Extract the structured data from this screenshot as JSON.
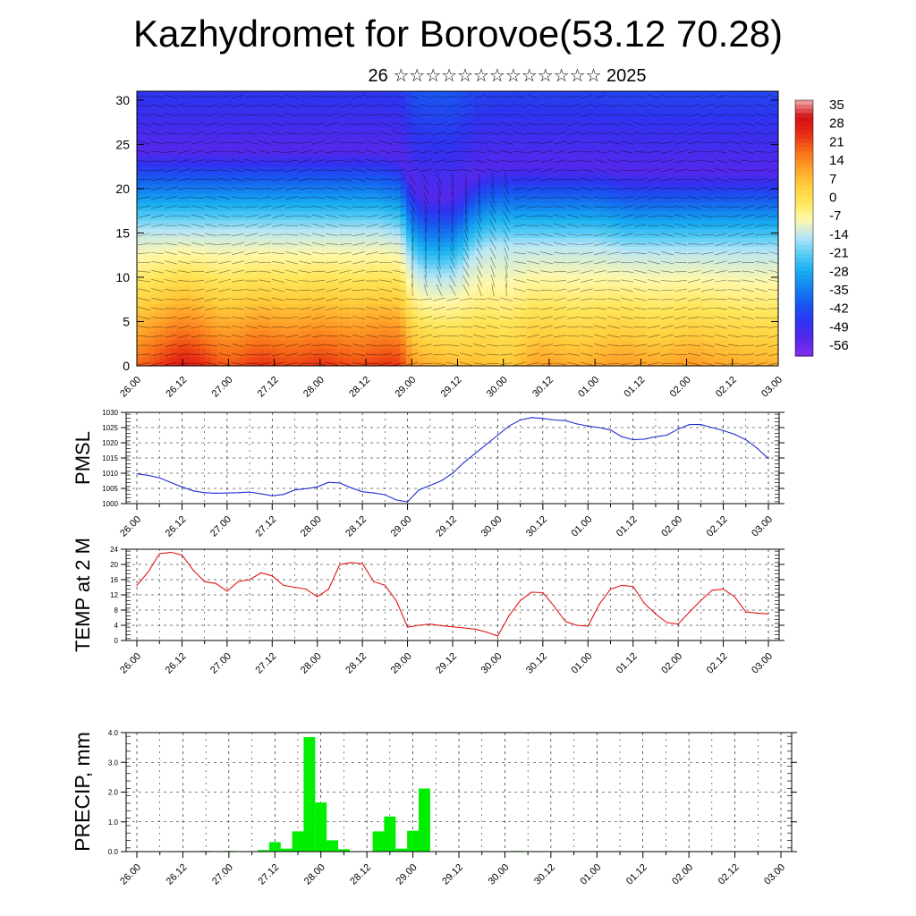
{
  "title": "Kazhydromet for Borovoe(53.12 70.28)",
  "subtitle": "26 ☆☆☆☆☆☆☆☆☆☆☆☆☆ 2025",
  "colors": {
    "pmsl_line": "#1f2fd1",
    "temp_line": "#e31414",
    "precip_bar": "#00ee00",
    "axis": "#000000"
  },
  "chart_data": [
    {
      "type": "heatmap",
      "name": "cross-section",
      "x_ticks": [
        "26.00",
        "26.12",
        "27.00",
        "27.12",
        "28.00",
        "28.12",
        "29.00",
        "29.12",
        "30.00",
        "30.12",
        "01.00",
        "01.12",
        "02.00",
        "02.12",
        "03.00"
      ],
      "y_ticks": [
        "0",
        "5",
        "10",
        "15",
        "20",
        "25",
        "30"
      ],
      "ylim": [
        0,
        31
      ],
      "colorbar_labels": [
        "35",
        "28",
        "21",
        "14",
        "7",
        "0",
        "-7",
        "-14",
        "-21",
        "-28",
        "-35",
        "-42",
        "-49",
        "-56"
      ],
      "colorbar_range": [
        -63,
        42
      ],
      "grid_times": [
        0,
        3,
        6,
        9,
        12,
        15,
        18,
        21,
        24,
        27,
        30,
        33,
        36,
        39,
        42,
        45,
        48,
        51,
        54,
        57,
        60,
        63,
        66,
        69,
        72,
        75,
        78,
        81,
        84,
        87,
        90,
        93,
        96,
        99,
        102,
        105,
        108,
        111,
        114,
        117,
        120,
        123,
        126,
        129,
        132,
        135,
        138,
        141,
        144,
        147,
        150,
        153,
        156,
        159,
        162,
        165,
        168
      ],
      "surface_temp": [
        22,
        24,
        27,
        30,
        32,
        31,
        28,
        25,
        24,
        25,
        27,
        28,
        27,
        26,
        26,
        27,
        28,
        27,
        26,
        25,
        26,
        27,
        28,
        27,
        16,
        13,
        12,
        11,
        10,
        10,
        10,
        9,
        8,
        9,
        12,
        14,
        14,
        13,
        12,
        12,
        13,
        14,
        15,
        15,
        14,
        13,
        13,
        14,
        15,
        15,
        14,
        13,
        13,
        12,
        12,
        12,
        12
      ],
      "tropopause_km": [
        15.3,
        15.3,
        15.3,
        15.3,
        15.3,
        15.3,
        15.3,
        15.3,
        15.3,
        15.3,
        15.3,
        15.3,
        15.3,
        15.3,
        15.3,
        15.3,
        15.3,
        15.3,
        15.3,
        15.3,
        15.3,
        15.3,
        15.0,
        14.8,
        11.5,
        10.2,
        10.0,
        10.0,
        10.5,
        12.0,
        13.0,
        13.5,
        13.6,
        13.6,
        13.6,
        13.6,
        13.6,
        13.6,
        13.6,
        13.6,
        13.6,
        13.4,
        13.2,
        13.0,
        13.0,
        13.0,
        13.0,
        13.0,
        13.0,
        13.0,
        13.0,
        13.0,
        13.0,
        13.0,
        13.0,
        13.0,
        13.0
      ],
      "upper_min_temp": [
        -56,
        -56,
        -56,
        -56,
        -56,
        -56,
        -56,
        -56,
        -56,
        -56,
        -56,
        -56,
        -56,
        -56,
        -56,
        -56,
        -56,
        -56,
        -56,
        -56,
        -56,
        -56,
        -56,
        -56,
        -56,
        -56,
        -56,
        -56,
        -56,
        -56,
        -56,
        -56,
        -56,
        -56,
        -56,
        -56,
        -56,
        -56,
        -56,
        -56,
        -56,
        -56,
        -56,
        -56,
        -56,
        -56,
        -56,
        -56,
        -56,
        -56,
        -56,
        -56,
        -56,
        -56,
        -56,
        -56,
        -56
      ]
    },
    {
      "type": "line",
      "name": "PMSL",
      "ylabel": "PMSL",
      "x_ticks": [
        "26.00",
        "26.12",
        "27.00",
        "27.12",
        "28.00",
        "28.12",
        "29.00",
        "29.12",
        "30.00",
        "30.12",
        "01.00",
        "01.12",
        "02.00",
        "02.12",
        "03.00"
      ],
      "y_ticks": [
        "1000",
        "1005",
        "1010",
        "1015",
        "1020",
        "1025",
        "1030"
      ],
      "ylim": [
        1000,
        1030
      ],
      "x": [
        0,
        3,
        6,
        9,
        12,
        15,
        18,
        21,
        24,
        27,
        30,
        33,
        36,
        39,
        42,
        45,
        48,
        51,
        54,
        57,
        60,
        63,
        66,
        69,
        72,
        75,
        78,
        81,
        84,
        87,
        90,
        93,
        96,
        99,
        102,
        105,
        108,
        111,
        114,
        117,
        120,
        123,
        126,
        129,
        132,
        135,
        138,
        141,
        144,
        147,
        150,
        153,
        156,
        159,
        162,
        165,
        168
      ],
      "values": [
        1009.8,
        1009.3,
        1008.5,
        1007.0,
        1005.5,
        1004.2,
        1003.6,
        1003.4,
        1003.5,
        1003.6,
        1003.8,
        1003.2,
        1002.6,
        1003.0,
        1004.5,
        1004.9,
        1005.5,
        1007.0,
        1006.8,
        1005.2,
        1003.9,
        1003.5,
        1002.9,
        1001.2,
        1000.6,
        1004.5,
        1006.0,
        1007.5,
        1010.0,
        1013.5,
        1016.5,
        1019.5,
        1022.5,
        1025.5,
        1027.5,
        1028.3,
        1028.0,
        1027.5,
        1027.3,
        1026.2,
        1025.5,
        1025.0,
        1024.2,
        1022.0,
        1021.0,
        1021.2,
        1022.0,
        1022.5,
        1024.5,
        1026.0,
        1026.0,
        1025.0,
        1024.0,
        1022.8,
        1021.0,
        1018.2,
        1014.8
      ]
    },
    {
      "type": "line",
      "name": "TEMP",
      "ylabel": "TEMP at 2 M",
      "x_ticks": [
        "26.00",
        "26.12",
        "27.00",
        "27.12",
        "28.00",
        "28.12",
        "29.00",
        "29.12",
        "30.00",
        "30.12",
        "01.00",
        "01.12",
        "02.00",
        "02.12",
        "03.00"
      ],
      "y_ticks": [
        "0",
        "4",
        "8",
        "12",
        "16",
        "20",
        "24"
      ],
      "ylim": [
        0,
        24
      ],
      "x": [
        0,
        3,
        6,
        9,
        12,
        15,
        18,
        21,
        24,
        27,
        30,
        33,
        36,
        39,
        42,
        45,
        48,
        51,
        54,
        57,
        60,
        63,
        66,
        69,
        72,
        75,
        78,
        81,
        84,
        87,
        90,
        93,
        96,
        99,
        102,
        105,
        108,
        111,
        114,
        117,
        120,
        123,
        126,
        129,
        132,
        135,
        138,
        141,
        144,
        147,
        150,
        153,
        156,
        159,
        162,
        165,
        168
      ],
      "values": [
        14.5,
        18.0,
        22.8,
        23.2,
        22.5,
        18.5,
        15.5,
        15.0,
        13.0,
        15.5,
        16.0,
        17.8,
        17.0,
        14.5,
        14.0,
        13.5,
        11.5,
        13.5,
        20.0,
        20.5,
        20.2,
        15.5,
        14.5,
        10.5,
        3.5,
        4.0,
        4.3,
        3.9,
        3.6,
        3.3,
        3.0,
        2.2,
        1.2,
        6.5,
        10.5,
        12.7,
        12.6,
        9.0,
        5.0,
        4.0,
        3.8,
        9.5,
        13.5,
        14.5,
        14.2,
        9.8,
        7.0,
        4.7,
        4.3,
        7.5,
        10.5,
        13.2,
        13.5,
        11.5,
        7.5,
        7.2,
        7.0
      ]
    },
    {
      "type": "bar",
      "name": "PRECIP",
      "ylabel": "PRECIP, mm",
      "x_ticks": [
        "26.00",
        "26.12",
        "27.00",
        "27.12",
        "28.00",
        "28.12",
        "29.00",
        "29.12",
        "30.00",
        "30.12",
        "01.00",
        "01.12",
        "02.00",
        "02.12",
        "03.00"
      ],
      "y_ticks": [
        "0.0",
        "1.0",
        "2.0",
        "3.0",
        "4.0"
      ],
      "ylim": [
        0,
        4
      ],
      "x": [
        0,
        3,
        6,
        9,
        12,
        15,
        18,
        21,
        24,
        27,
        30,
        33,
        36,
        39,
        42,
        45,
        48,
        51,
        54,
        57,
        60,
        63,
        66,
        69,
        72,
        75,
        78,
        81,
        84,
        87,
        90,
        93,
        96,
        99,
        102,
        105,
        108,
        111,
        114,
        117,
        120,
        123,
        126,
        129,
        132,
        135,
        138,
        141,
        144,
        147,
        150,
        153,
        156,
        159,
        162,
        165,
        168
      ],
      "values": [
        0,
        0,
        0,
        0,
        0,
        0.02,
        0,
        0.02,
        0,
        0,
        0.05,
        0.32,
        0.1,
        0.68,
        3.85,
        1.65,
        0.38,
        0.08,
        0,
        0,
        0.68,
        1.18,
        0.1,
        0.7,
        2.12,
        0,
        0,
        0,
        0,
        0,
        0,
        0,
        0.02,
        0,
        0,
        0,
        0,
        0,
        0,
        0,
        0,
        0,
        0,
        0,
        0,
        0,
        0,
        0,
        0,
        0,
        0,
        0,
        0,
        0,
        0,
        0,
        0
      ]
    }
  ]
}
